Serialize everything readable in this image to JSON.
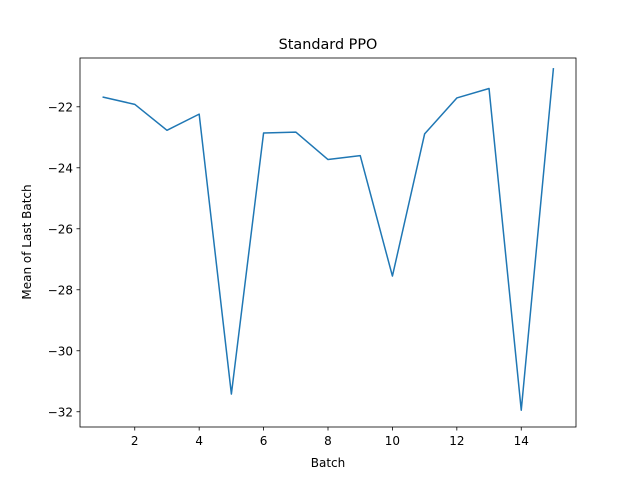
{
  "chart_data": {
    "type": "line",
    "title": "Standard PPO",
    "xlabel": "Batch",
    "ylabel": "Mean of Last Batch",
    "xlim": [
      0.3,
      15.7
    ],
    "ylim": [
      -32.5,
      -20.4
    ],
    "xticks": [
      2,
      4,
      6,
      8,
      10,
      12,
      14
    ],
    "xtick_labels": [
      "2",
      "4",
      "6",
      "8",
      "10",
      "12",
      "14"
    ],
    "yticks": [
      -32,
      -30,
      -28,
      -26,
      -24,
      -22
    ],
    "ytick_labels": [
      "−32",
      "−30",
      "−28",
      "−26",
      "−24",
      "−22"
    ],
    "grid": false,
    "series": [
      {
        "color": "#1f77b4",
        "x": [
          1,
          2,
          3,
          4,
          5,
          6,
          7,
          8,
          9,
          10,
          11,
          12,
          13,
          14,
          15
        ],
        "y": [
          -21.68,
          -21.92,
          -22.77,
          -22.24,
          -31.42,
          -22.86,
          -22.83,
          -23.73,
          -23.6,
          -27.55,
          -22.89,
          -21.71,
          -21.4,
          -31.95,
          -20.73
        ]
      }
    ]
  }
}
